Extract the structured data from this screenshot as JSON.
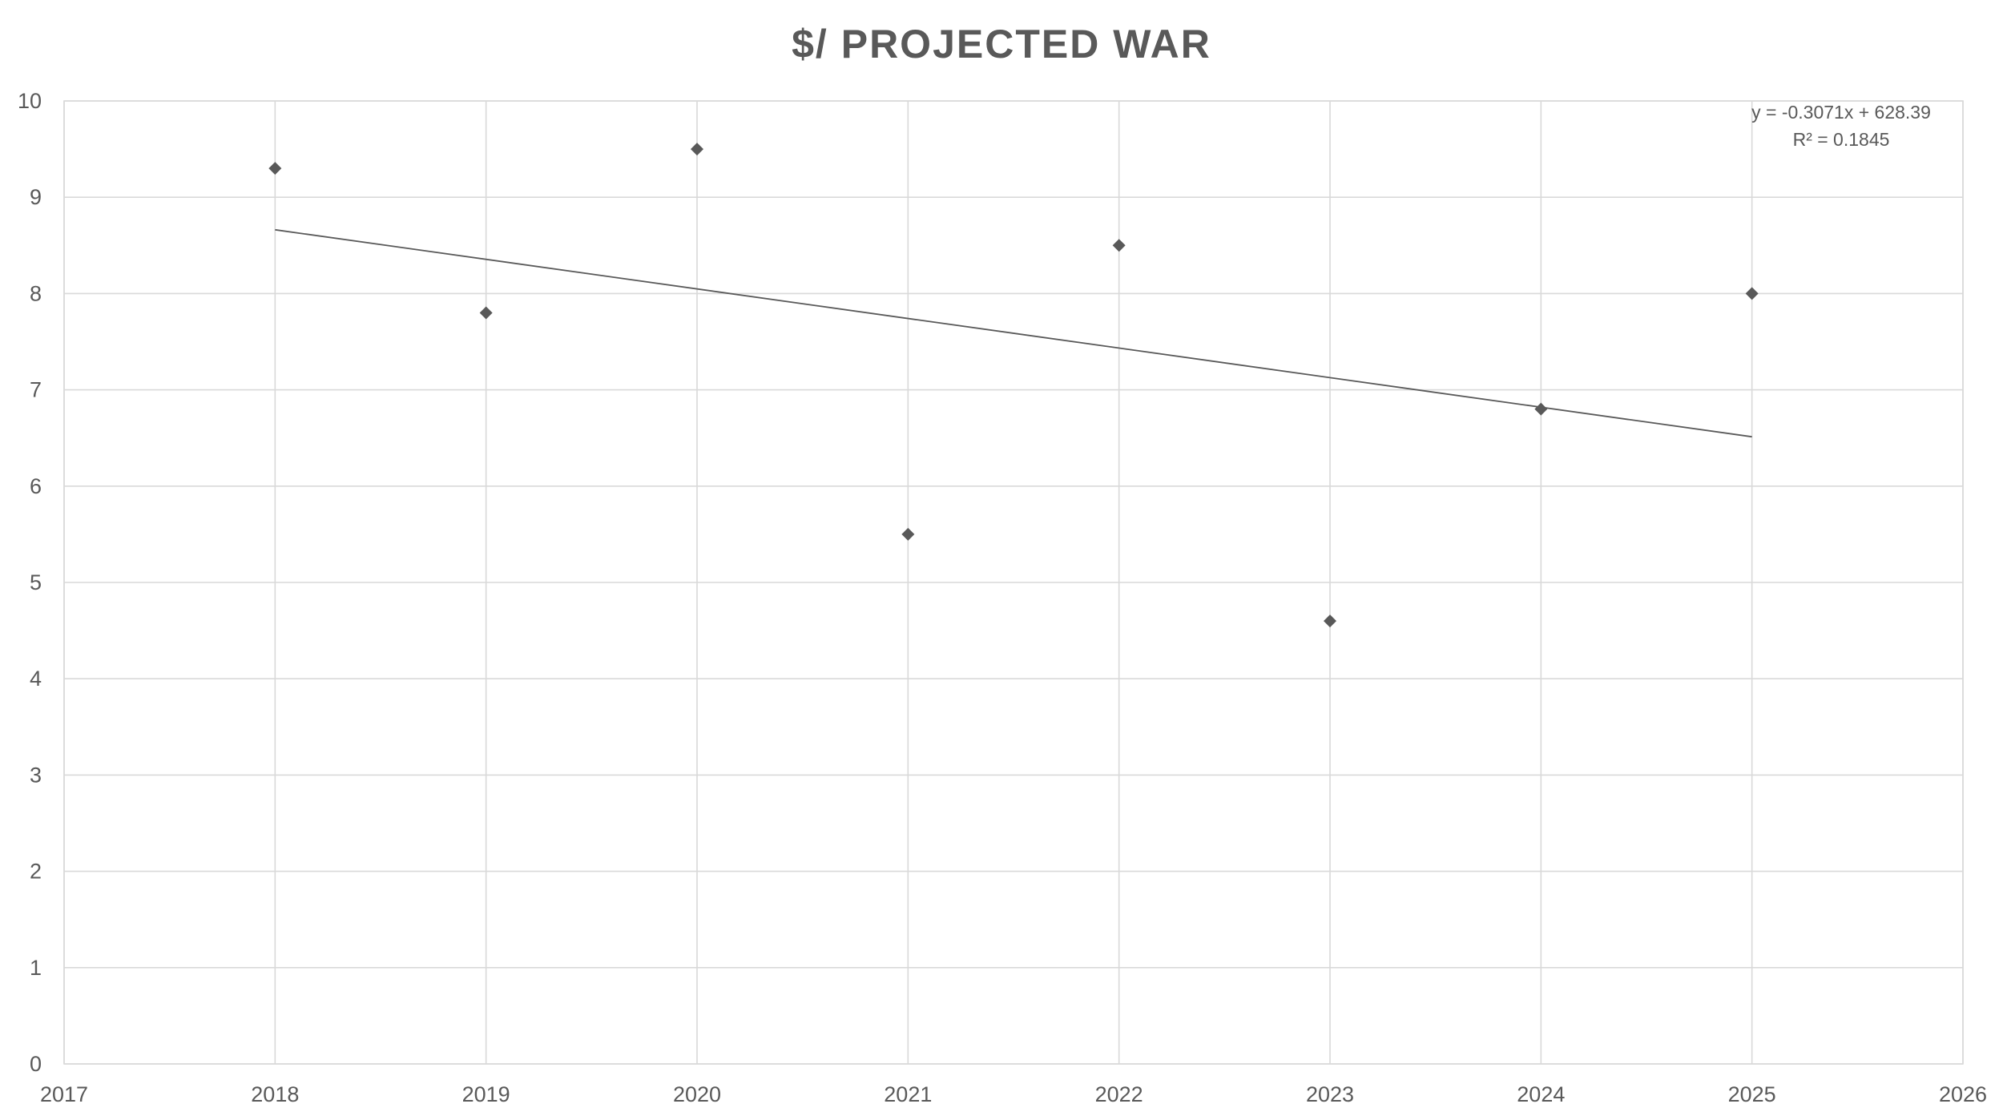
{
  "chart_data": {
    "type": "scatter",
    "title": "$/ PROJECTED WAR",
    "xlabel": "",
    "ylabel": "",
    "xlim": [
      2017,
      2026
    ],
    "ylim": [
      0,
      10
    ],
    "x_ticks": [
      2017,
      2018,
      2019,
      2020,
      2021,
      2022,
      2023,
      2024,
      2025,
      2026
    ],
    "y_ticks": [
      0,
      1,
      2,
      3,
      4,
      5,
      6,
      7,
      8,
      9,
      10
    ],
    "grid": true,
    "legend": "none",
    "series": [
      {
        "marker": "diamond",
        "color": "#595959",
        "x": [
          2018,
          2019,
          2020,
          2021,
          2022,
          2023,
          2024,
          2025
        ],
        "y": [
          9.3,
          7.8,
          9.5,
          5.5,
          8.5,
          4.6,
          6.8,
          8.0
        ]
      }
    ],
    "trendline": {
      "type": "linear",
      "slope": -0.3071,
      "intercept": 628.39,
      "x_range": [
        2018,
        2025
      ],
      "equation_label": "y = -0.3071x + 628.39",
      "r_squared_label": "R² = 0.1845",
      "color": "#595959"
    },
    "colors": {
      "text": "#595959",
      "grid": "#d9d9d9",
      "marker": "#595959"
    }
  }
}
